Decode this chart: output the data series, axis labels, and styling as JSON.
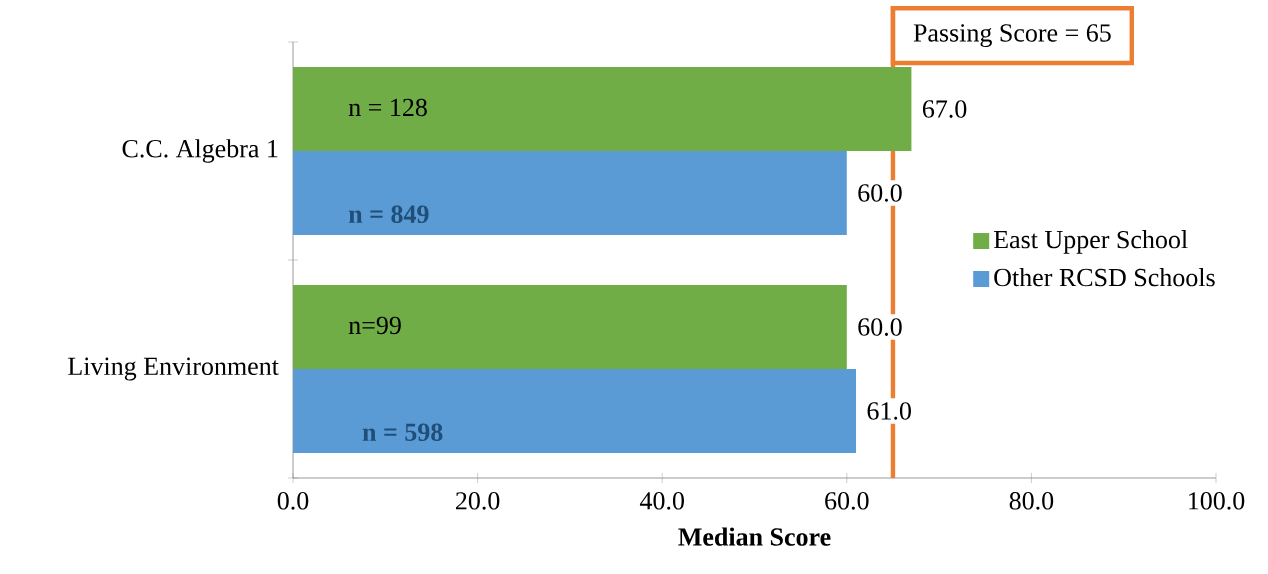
{
  "chart_data": {
    "type": "bar",
    "orientation": "horizontal",
    "categories": [
      "C.C. Algebra 1",
      "Living Environment"
    ],
    "series": [
      {
        "name": "East Upper School",
        "color": "#70ad47",
        "values": [
          67,
          60
        ],
        "value_labels": [
          "67.0",
          "60.0"
        ]
      },
      {
        "name": "Other RCSD Schools",
        "color": "#5b9bd5",
        "values": [
          60,
          61
        ],
        "value_labels": [
          "60.0",
          "61.0"
        ]
      }
    ],
    "xlim": [
      0,
      100
    ],
    "xticks": [
      {
        "value": 0,
        "label": "0.0"
      },
      {
        "value": 20,
        "label": "20.0"
      },
      {
        "value": 40,
        "label": "40.0"
      },
      {
        "value": 60,
        "label": "60.0"
      },
      {
        "value": 80,
        "label": "80.0"
      },
      {
        "value": 100,
        "label": "100.0"
      }
    ],
    "xlabel": "Median Score",
    "ref_lines": [
      {
        "axis": "x",
        "value": 65,
        "label": "Passing Score = 65",
        "color": "#ed7d31"
      }
    ],
    "annotations": [
      "n = 128",
      "n = 849",
      "n=99",
      "n = 598"
    ],
    "legend": "right",
    "grid": false
  }
}
